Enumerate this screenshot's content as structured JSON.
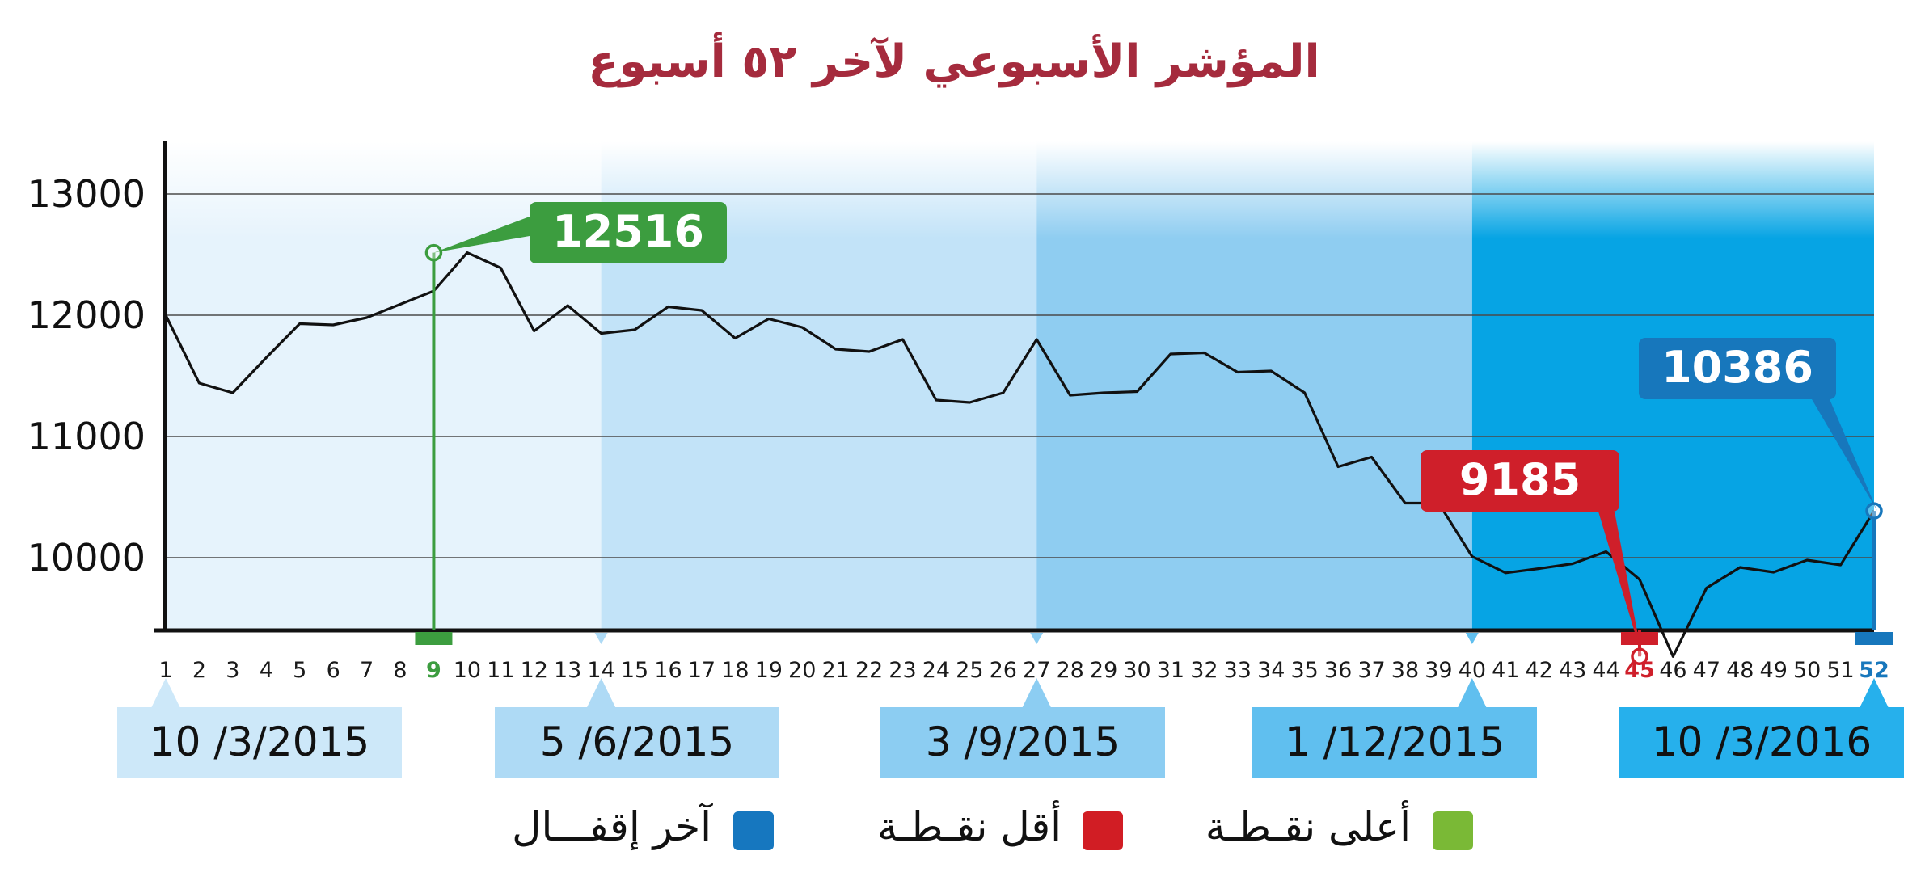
{
  "chart_data": {
    "type": "line",
    "title": "المؤشر الأسبوعي لآخر ٥٢ أسبوع",
    "xlabel": "",
    "ylabel": "",
    "x": [
      1,
      2,
      3,
      4,
      5,
      6,
      7,
      8,
      9,
      10,
      11,
      12,
      13,
      14,
      15,
      16,
      17,
      18,
      19,
      20,
      21,
      22,
      23,
      24,
      25,
      26,
      27,
      28,
      29,
      30,
      31,
      32,
      33,
      34,
      35,
      36,
      37,
      38,
      39,
      40,
      41,
      42,
      43,
      44,
      45,
      46,
      47,
      48,
      49,
      50,
      51,
      52
    ],
    "series": [
      {
        "values": [
          12000,
          11440,
          11360,
          11650,
          11930,
          11920,
          11980,
          12090,
          12200,
          12516,
          12390,
          11870,
          12080,
          11850,
          11880,
          12070,
          12040,
          11810,
          11970,
          11900,
          11720,
          11700,
          11800,
          11300,
          11280,
          11360,
          11800,
          11340,
          11360,
          11370,
          11680,
          11690,
          11530,
          11540,
          11360,
          10750,
          10830,
          10450,
          10450,
          10010,
          9875,
          9910,
          9950,
          10050,
          9820,
          9185,
          9750,
          9920,
          9880,
          9980,
          9940,
          10386
        ]
      }
    ],
    "ylim": [
      9400,
      13400
    ],
    "yticks": [
      10000,
      11000,
      12000,
      13000
    ],
    "grid": true,
    "bands": [
      "#e6f3fc",
      "#c2e3f8",
      "#8fcdf1",
      "#3cb5ea",
      "#06a4e4"
    ],
    "highlights": [
      {
        "key": "max",
        "week": 9,
        "value": 12516,
        "label": "12516",
        "color": "#3c9d3f"
      },
      {
        "key": "min",
        "week": 45,
        "value": 9185,
        "label": "9185",
        "color": "#cf1f2a"
      },
      {
        "key": "last",
        "week": 52,
        "value": 10386,
        "label": "10386",
        "color": "#1777bc"
      }
    ],
    "date_markers": [
      {
        "week": 1,
        "label": "10 /3/2015",
        "color": "#cde8f9"
      },
      {
        "week": 14,
        "label": "5 /6/2015",
        "color": "#aedaf5"
      },
      {
        "week": 27,
        "label": "3 /9/2015",
        "color": "#8ccdf2"
      },
      {
        "week": 40,
        "label": "1 /12/2015",
        "color": "#60bfef"
      },
      {
        "week": 52,
        "label": "10 /3/2016",
        "color": "#26b0ec"
      }
    ],
    "legend": [
      {
        "label": "أعلى نقـطـة",
        "color": "#7ab936"
      },
      {
        "label": "أقل نقـطـة",
        "color": "#d11d24"
      },
      {
        "label": "آخر إقفـــال",
        "color": "#1677bf"
      }
    ]
  }
}
